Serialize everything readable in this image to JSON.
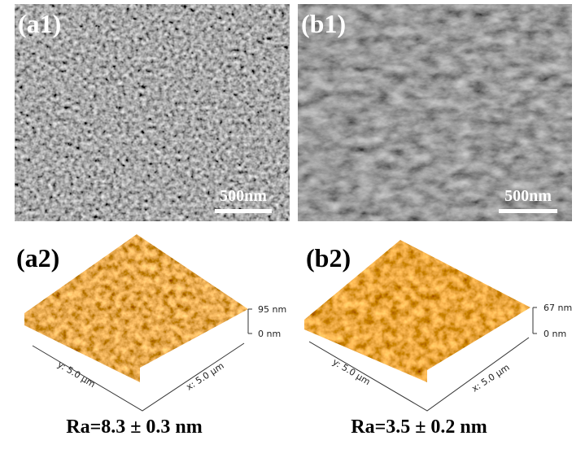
{
  "panels": [
    {
      "label": "(a1)",
      "scale_bar": "500nm"
    },
    {
      "label": "(b1)",
      "scale_bar": "500nm"
    },
    {
      "label": "(a2)",
      "z_top": "95 nm",
      "z_bottom": "0 nm",
      "y_axis": "y: 5.0 µm",
      "x_axis": "x: 5.0 µm",
      "roughness": "Ra=8.3 ± 0.3 nm"
    },
    {
      "label": "(b2)",
      "z_top": "67 nm",
      "z_bottom": "0 nm",
      "y_axis": "y: 5.0 µm",
      "x_axis": "x: 5.0 µm",
      "roughness": "Ra=3.5 ± 0.2 nm"
    }
  ]
}
